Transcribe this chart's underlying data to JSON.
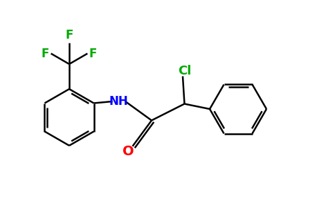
{
  "bg_color": "#ffffff",
  "bond_color": "#000000",
  "N_color": "#0000ff",
  "O_color": "#ff0000",
  "F_color": "#00aa00",
  "Cl_color": "#00aa00",
  "line_width": 1.8,
  "font_size": 12,
  "figsize": [
    4.84,
    3.0
  ],
  "dpi": 100,
  "xlim": [
    0,
    9.68
  ],
  "ylim": [
    0,
    6.0
  ]
}
